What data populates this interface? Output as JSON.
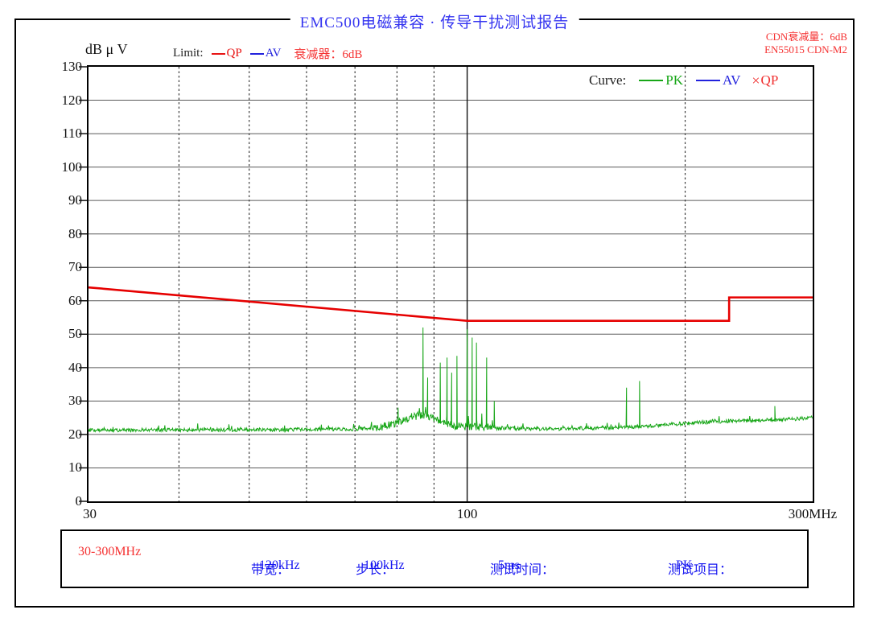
{
  "page": {
    "title": "EMC500电磁兼容 · 传导干扰测试报告"
  },
  "header": {
    "cdn_note": "CDN衰减量：6dB",
    "standard_note": "EN55015 CDN-M2",
    "y_unit": "dB μ V",
    "limit_label": "Limit:",
    "limit_items": [
      {
        "name": "QP",
        "color": "#e81414"
      },
      {
        "name": "AV",
        "color": "#2222dd"
      }
    ],
    "attenuator_note": "衰减器：6dB"
  },
  "curve_legend": {
    "label": "Curve:",
    "items": [
      {
        "name": "PK",
        "symbol": "line",
        "color": "#17a617"
      },
      {
        "name": "AV",
        "symbol": "line",
        "color": "#2222dd"
      },
      {
        "name": "QP",
        "symbol": "×",
        "color": "#f03030"
      }
    ]
  },
  "footer": {
    "range": "30-300MHz",
    "fields": [
      {
        "label": "带宽：",
        "value": "120kHz"
      },
      {
        "label": "步长：",
        "value": "100kHz"
      },
      {
        "label": "测试时间：",
        "value": "5ms"
      },
      {
        "label": "测试项目：",
        "value": "PK"
      }
    ]
  },
  "colors": {
    "title_blue": "#3535f0",
    "note_red": "#f53232",
    "field_blue": "#1616f0",
    "limit_red": "#e60000",
    "trace_green": "#17a617"
  },
  "chart_data": {
    "type": "line",
    "title": "EMC500电磁兼容 · 传导干扰测试报告",
    "x_axis": {
      "scale": "log",
      "min": 30,
      "max": 300,
      "unit": "MHz",
      "ticks": [
        {
          "f": 30,
          "label": "30",
          "anchor": "start"
        },
        {
          "f": 100,
          "label": "100",
          "anchor": "middle"
        },
        {
          "f": 300,
          "label": "300MHz",
          "anchor": "middle"
        }
      ],
      "dashed_gridlines": [
        40,
        50,
        60,
        70,
        80,
        90,
        200
      ],
      "solid_gridlines": [
        100
      ]
    },
    "y_axis": {
      "label": "dB μ V",
      "min": 0,
      "max": 130,
      "step": 10,
      "gridlines": "solid horizontal every 10 dB"
    },
    "series": [
      {
        "name": "QP limit (EN55015 CDN-M2)",
        "role": "limit-line",
        "color": "#e60000",
        "points": [
          [
            30,
            64
          ],
          [
            100,
            54
          ],
          [
            230,
            54
          ],
          [
            230,
            61
          ],
          [
            300,
            61
          ]
        ]
      },
      {
        "name": "PK measured trace",
        "role": "measurement",
        "color": "#17a617",
        "noise_floor": [
          [
            30,
            21.3
          ],
          [
            55,
            21.4
          ],
          [
            70,
            21.6
          ],
          [
            76,
            22.2
          ],
          [
            80,
            23.5
          ],
          [
            84,
            25.3
          ],
          [
            87,
            25.8
          ],
          [
            90,
            24.6
          ],
          [
            93,
            23.2
          ],
          [
            96,
            22.6
          ],
          [
            100,
            22.3
          ],
          [
            104,
            22.3
          ],
          [
            108,
            22.0
          ],
          [
            115,
            21.8
          ],
          [
            130,
            21.6
          ],
          [
            150,
            21.9
          ],
          [
            170,
            22.3
          ],
          [
            190,
            23.0
          ],
          [
            210,
            23.6
          ],
          [
            230,
            24.0
          ],
          [
            260,
            24.3
          ],
          [
            280,
            24.6
          ],
          [
            300,
            25.0
          ]
        ],
        "peaks": [
          [
            80.3,
            28
          ],
          [
            86.9,
            52
          ],
          [
            88.2,
            37
          ],
          [
            91.8,
            41.5
          ],
          [
            93.8,
            43
          ],
          [
            95.2,
            38.5
          ],
          [
            96.8,
            43.5
          ],
          [
            100,
            51.5
          ],
          [
            101.6,
            49
          ],
          [
            103,
            47.5
          ],
          [
            106.4,
            43
          ],
          [
            109,
            30
          ],
          [
            166,
            34
          ],
          [
            173,
            36
          ],
          [
            266,
            28.5
          ]
        ]
      }
    ],
    "notes": [
      "CDN衰减量：6dB",
      "EN55015 CDN-M2",
      "衰减器：6dB",
      "测试项目：PK"
    ]
  }
}
